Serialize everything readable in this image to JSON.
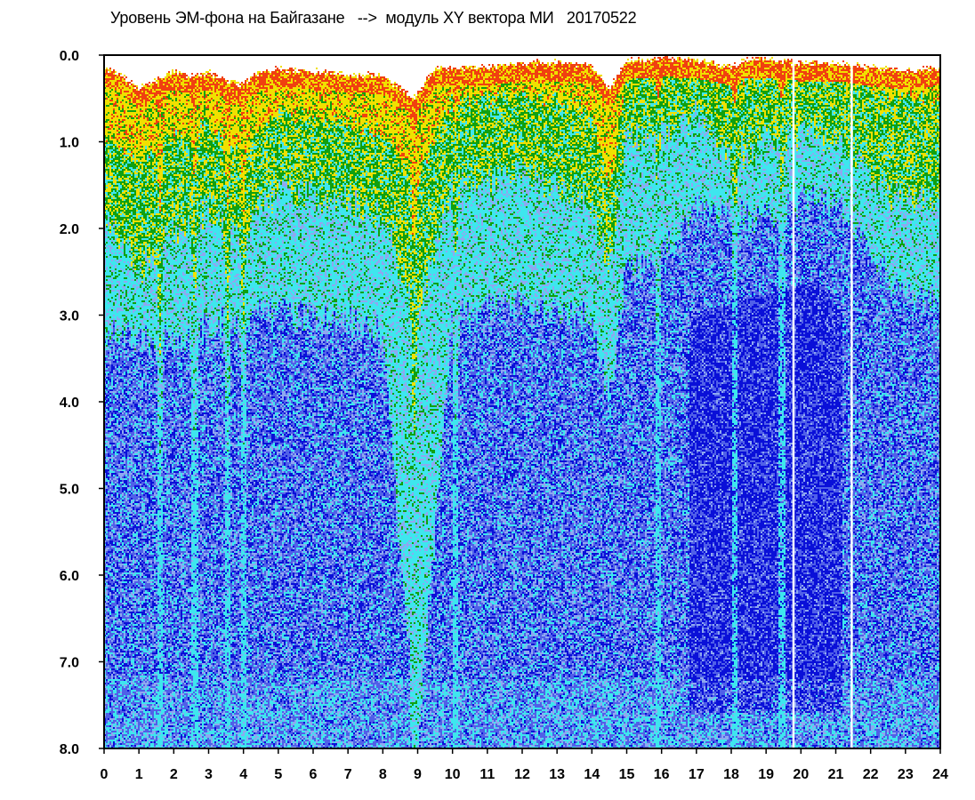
{
  "chart_data": {
    "type": "heatmap",
    "title": "Уровень ЭМ-фона на Байгазане   -->  модуль XY вектора МИ   20170522",
    "xlabel": "",
    "ylabel": "",
    "xlim": [
      0,
      24
    ],
    "ylim": [
      0,
      8
    ],
    "y_inverted": true,
    "x_ticks": [
      "0",
      "1",
      "2",
      "3",
      "4",
      "5",
      "6",
      "7",
      "8",
      "9",
      "10",
      "11",
      "12",
      "13",
      "14",
      "15",
      "16",
      "17",
      "18",
      "19",
      "20",
      "21",
      "22",
      "23",
      "24"
    ],
    "y_ticks": [
      "0.0",
      "1.0",
      "2.0",
      "3.0",
      "4.0",
      "5.0",
      "6.0",
      "7.0",
      "8.0"
    ],
    "colormap": [
      "#0a10d8",
      "#5060e8",
      "#8ea8f0",
      "#3ee6ee",
      "#10a010",
      "#f0e000",
      "#f04010"
    ],
    "grid": false,
    "gaps_hours": [
      19.78,
      21.45
    ],
    "spikes_hours": [
      1.6,
      2.6,
      3.55,
      4.0,
      8.9,
      10.1,
      15.9,
      18.1,
      19.45
    ],
    "data_edge_profile": [
      {
        "x": 0.0,
        "y": 0.1
      },
      {
        "x": 0.5,
        "y": 0.2
      },
      {
        "x": 1.0,
        "y": 0.35
      },
      {
        "x": 1.5,
        "y": 0.25
      },
      {
        "x": 2.0,
        "y": 0.15
      },
      {
        "x": 2.5,
        "y": 0.2
      },
      {
        "x": 3.0,
        "y": 0.15
      },
      {
        "x": 3.5,
        "y": 0.25
      },
      {
        "x": 4.0,
        "y": 0.3
      },
      {
        "x": 4.5,
        "y": 0.15
      },
      {
        "x": 5.0,
        "y": 0.12
      },
      {
        "x": 6.0,
        "y": 0.15
      },
      {
        "x": 7.0,
        "y": 0.18
      },
      {
        "x": 8.0,
        "y": 0.2
      },
      {
        "x": 8.9,
        "y": 0.45
      },
      {
        "x": 9.5,
        "y": 0.12
      },
      {
        "x": 10.0,
        "y": 0.1
      },
      {
        "x": 11.0,
        "y": 0.1
      },
      {
        "x": 12.0,
        "y": 0.05
      },
      {
        "x": 13.0,
        "y": 0.05
      },
      {
        "x": 14.0,
        "y": 0.08
      },
      {
        "x": 14.5,
        "y": 0.35
      },
      {
        "x": 15.0,
        "y": 0.03
      },
      {
        "x": 16.0,
        "y": 0.0
      },
      {
        "x": 17.0,
        "y": 0.02
      },
      {
        "x": 18.0,
        "y": 0.1
      },
      {
        "x": 18.5,
        "y": 0.01
      },
      {
        "x": 19.0,
        "y": 0.01
      },
      {
        "x": 20.0,
        "y": 0.05
      },
      {
        "x": 21.0,
        "y": 0.05
      },
      {
        "x": 22.0,
        "y": 0.1
      },
      {
        "x": 23.0,
        "y": 0.15
      },
      {
        "x": 24.0,
        "y": 0.1
      }
    ],
    "yellow_depth_profile": [
      {
        "x": 0.0,
        "y": 0.9
      },
      {
        "x": 1.0,
        "y": 1.2
      },
      {
        "x": 2.0,
        "y": 0.9
      },
      {
        "x": 3.0,
        "y": 0.8
      },
      {
        "x": 4.0,
        "y": 1.1
      },
      {
        "x": 5.0,
        "y": 0.7
      },
      {
        "x": 6.0,
        "y": 0.7
      },
      {
        "x": 7.0,
        "y": 0.8
      },
      {
        "x": 8.0,
        "y": 0.9
      },
      {
        "x": 9.0,
        "y": 1.4
      },
      {
        "x": 10.0,
        "y": 0.5
      },
      {
        "x": 11.0,
        "y": 0.5
      },
      {
        "x": 12.0,
        "y": 0.5
      },
      {
        "x": 13.0,
        "y": 0.5
      },
      {
        "x": 14.0,
        "y": 0.6
      },
      {
        "x": 14.5,
        "y": 1.6
      },
      {
        "x": 15.0,
        "y": 0.2
      },
      {
        "x": 16.0,
        "y": 0.15
      },
      {
        "x": 17.0,
        "y": 0.15
      },
      {
        "x": 18.0,
        "y": 0.3
      },
      {
        "x": 19.0,
        "y": 0.2
      },
      {
        "x": 20.0,
        "y": 0.25
      },
      {
        "x": 21.0,
        "y": 0.25
      },
      {
        "x": 22.0,
        "y": 0.4
      },
      {
        "x": 23.0,
        "y": 0.5
      },
      {
        "x": 24.0,
        "y": 0.5
      }
    ],
    "green_depth_profile": [
      {
        "x": 0.0,
        "y": 1.8
      },
      {
        "x": 1.0,
        "y": 2.5
      },
      {
        "x": 2.0,
        "y": 2.0
      },
      {
        "x": 3.0,
        "y": 1.8
      },
      {
        "x": 4.0,
        "y": 2.0
      },
      {
        "x": 5.0,
        "y": 1.6
      },
      {
        "x": 6.0,
        "y": 1.6
      },
      {
        "x": 7.0,
        "y": 1.7
      },
      {
        "x": 8.0,
        "y": 1.9
      },
      {
        "x": 9.0,
        "y": 3.0
      },
      {
        "x": 10.0,
        "y": 1.5
      },
      {
        "x": 11.0,
        "y": 1.5
      },
      {
        "x": 12.0,
        "y": 1.4
      },
      {
        "x": 13.0,
        "y": 1.5
      },
      {
        "x": 14.0,
        "y": 1.7
      },
      {
        "x": 14.5,
        "y": 2.5
      },
      {
        "x": 15.0,
        "y": 1.0
      },
      {
        "x": 16.0,
        "y": 0.9
      },
      {
        "x": 17.0,
        "y": 0.7
      },
      {
        "x": 18.0,
        "y": 1.2
      },
      {
        "x": 19.0,
        "y": 1.0
      },
      {
        "x": 20.0,
        "y": 0.9
      },
      {
        "x": 21.0,
        "y": 1.0
      },
      {
        "x": 22.0,
        "y": 1.4
      },
      {
        "x": 23.0,
        "y": 1.7
      },
      {
        "x": 24.0,
        "y": 1.6
      }
    ],
    "cyan_depth_profile": [
      {
        "x": 0.0,
        "y": 3.2
      },
      {
        "x": 2.0,
        "y": 3.3
      },
      {
        "x": 4.0,
        "y": 3.0
      },
      {
        "x": 6.0,
        "y": 3.0
      },
      {
        "x": 8.0,
        "y": 3.2
      },
      {
        "x": 9.0,
        "y": 8.0
      },
      {
        "x": 10.0,
        "y": 3.0
      },
      {
        "x": 12.0,
        "y": 2.9
      },
      {
        "x": 14.0,
        "y": 3.0
      },
      {
        "x": 14.5,
        "y": 4.0
      },
      {
        "x": 15.0,
        "y": 2.5
      },
      {
        "x": 16.0,
        "y": 2.3
      },
      {
        "x": 17.0,
        "y": 1.8
      },
      {
        "x": 18.0,
        "y": 1.8
      },
      {
        "x": 19.0,
        "y": 1.9
      },
      {
        "x": 20.0,
        "y": 1.7
      },
      {
        "x": 21.0,
        "y": 1.7
      },
      {
        "x": 22.0,
        "y": 2.3
      },
      {
        "x": 23.0,
        "y": 2.8
      },
      {
        "x": 24.0,
        "y": 2.8
      }
    ],
    "dark_blue_core": [
      {
        "x": 16.8,
        "y": 5.8
      },
      {
        "x": 18.5,
        "y": 5.0
      },
      {
        "x": 20.5,
        "y": 5.0
      },
      {
        "x": 21.2,
        "y": 6.0
      }
    ]
  }
}
